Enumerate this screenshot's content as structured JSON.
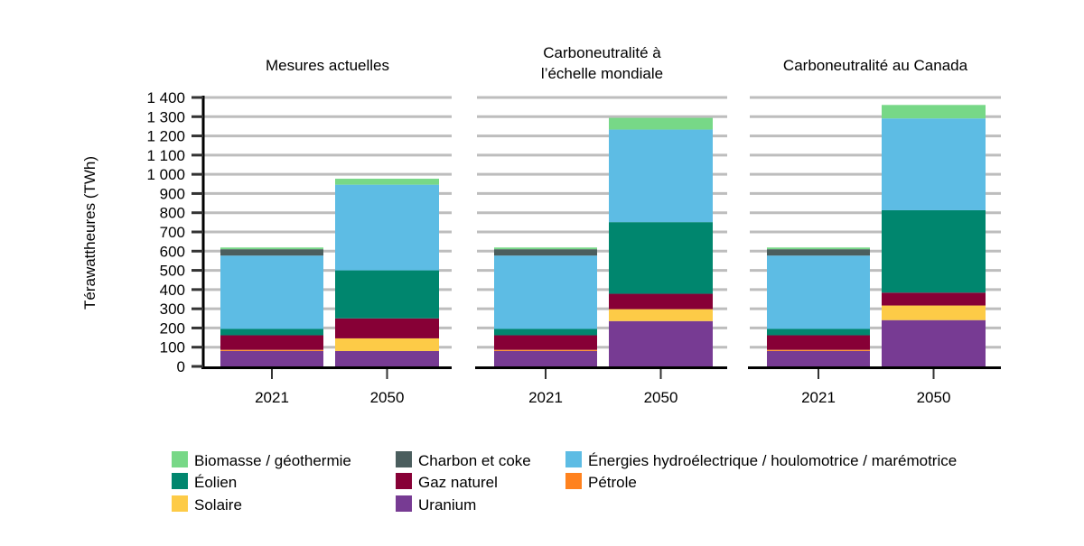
{
  "chart_data": {
    "type": "bar",
    "stacked": true,
    "ylabel": "Térawattheures (TWh)",
    "ylim": [
      0,
      1400
    ],
    "yticks": [
      0,
      100,
      200,
      300,
      400,
      500,
      600,
      700,
      800,
      900,
      1000,
      1100,
      1200,
      1300,
      1400
    ],
    "ytick_labels": [
      "0",
      "100",
      "200",
      "300",
      "400",
      "500",
      "600",
      "700",
      "800",
      "900",
      "1 000",
      "1 100",
      "1 200",
      "1 300",
      "1 400"
    ],
    "grid": true,
    "legend_position": "bottom",
    "categories": [
      "2021",
      "2050"
    ],
    "series_meta": [
      {
        "key": "uranium",
        "name": "Uranium",
        "color": "#773b93"
      },
      {
        "key": "petrole",
        "name": "Pétrole",
        "color": "#ff821e"
      },
      {
        "key": "solaire",
        "name": "Solaire",
        "color": "#fdcb47"
      },
      {
        "key": "gaz",
        "name": "Gaz naturel",
        "color": "#870036"
      },
      {
        "key": "eolien",
        "name": "Éolien",
        "color": "#00866e"
      },
      {
        "key": "hydro",
        "name": "Énergies hydroélectrique / houlomotrice / marémotrice",
        "color": "#5dbce4"
      },
      {
        "key": "charbon",
        "name": "Charbon et coke",
        "color": "#4b5e5e"
      },
      {
        "key": "biomasse",
        "name": "Biomasse / géothermie",
        "color": "#77d887"
      }
    ],
    "panels": [
      {
        "title": [
          "Mesures actuelles"
        ],
        "values": {
          "2021": {
            "uranium": 80,
            "petrole": 4,
            "solaire": 2,
            "gaz": 76,
            "eolien": 33,
            "hydro": 382,
            "charbon": 33,
            "biomasse": 9
          },
          "2050": {
            "uranium": 80,
            "petrole": 0,
            "solaire": 66,
            "gaz": 104,
            "eolien": 250,
            "hydro": 446,
            "charbon": 0,
            "biomasse": 31
          }
        }
      },
      {
        "title": [
          "Carboneutralité à",
          "l’échelle mondiale"
        ],
        "values": {
          "2021": {
            "uranium": 80,
            "petrole": 4,
            "solaire": 2,
            "gaz": 76,
            "eolien": 33,
            "hydro": 382,
            "charbon": 33,
            "biomasse": 9
          },
          "2050": {
            "uranium": 236,
            "petrole": 0,
            "solaire": 62,
            "gaz": 80,
            "eolien": 373,
            "hydro": 482,
            "charbon": 0,
            "biomasse": 61
          }
        }
      },
      {
        "title": [
          "Carboneutralité au Canada"
        ],
        "values": {
          "2021": {
            "uranium": 80,
            "petrole": 4,
            "solaire": 2,
            "gaz": 76,
            "eolien": 33,
            "hydro": 382,
            "charbon": 33,
            "biomasse": 9
          },
          "2050": {
            "uranium": 241,
            "petrole": 0,
            "solaire": 76,
            "gaz": 67,
            "eolien": 429,
            "hydro": 478,
            "charbon": 0,
            "biomasse": 70
          }
        }
      }
    ],
    "legend": [
      {
        "key": "biomasse",
        "label": "Biomasse / géothermie"
      },
      {
        "key": "eolien",
        "label": "Éolien"
      },
      {
        "key": "solaire",
        "label": "Solaire"
      },
      {
        "key": "charbon",
        "label": "Charbon et coke"
      },
      {
        "key": "gaz",
        "label": "Gaz naturel"
      },
      {
        "key": "uranium",
        "label": "Uranium"
      },
      {
        "key": "hydro",
        "label": "Énergies hydroélectrique / houlomotrice / marémotrice"
      },
      {
        "key": "petrole",
        "label": "Pétrole"
      }
    ]
  }
}
